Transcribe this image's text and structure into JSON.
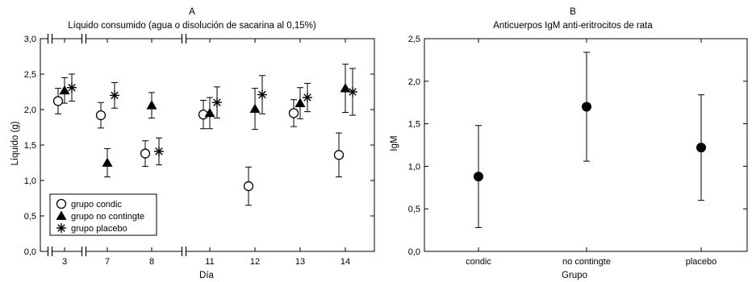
{
  "chart_data": [
    {
      "type": "scatter",
      "panel_letter": "A",
      "title": "Líquido consumido (agua o disolución de sacarina al 0,15%)",
      "xlabel": "Día",
      "ylabel": "Líquido (g)",
      "ylim": [
        0,
        3
      ],
      "yticks": [
        "0,0",
        "0,5",
        "1,0",
        "1,5",
        "2,0",
        "2,5",
        "3,0"
      ],
      "categories": [
        "3",
        "7",
        "8",
        "11",
        "12",
        "13",
        "14"
      ],
      "axis_breaks": "between 3 and 7, and between 8 and 11",
      "grid": false,
      "legend_position": "bottom-left",
      "series": [
        {
          "name": "grupo condic",
          "marker": "open-circle",
          "values": [
            2.12,
            1.92,
            1.38,
            1.93,
            0.92,
            1.95,
            1.36
          ],
          "errors": [
            0.18,
            0.18,
            0.18,
            0.2,
            0.27,
            0.19,
            0.31
          ]
        },
        {
          "name": "grupo no contingte",
          "marker": "filled-triangle",
          "values": [
            2.27,
            1.25,
            2.06,
            1.95,
            2.01,
            2.09,
            2.3
          ],
          "errors": [
            0.18,
            0.2,
            0.18,
            0.22,
            0.29,
            0.22,
            0.34
          ]
        },
        {
          "name": "grupo placebo",
          "marker": "asterisk",
          "values": [
            2.31,
            2.2,
            1.41,
            2.1,
            2.21,
            2.17,
            2.25
          ],
          "errors": [
            0.19,
            0.18,
            0.19,
            0.22,
            0.27,
            0.2,
            0.33
          ]
        }
      ]
    },
    {
      "type": "scatter",
      "panel_letter": "B",
      "title": "Anticuerpos IgM anti-eritrocitos de rata",
      "xlabel": "Grupo",
      "ylabel": "IgM",
      "ylim": [
        0,
        2.5
      ],
      "yticks": [
        "0,0",
        "0,5",
        "1,0",
        "1,5",
        "2,0",
        "2,5"
      ],
      "categories": [
        "condic",
        "no contingte",
        "placebo"
      ],
      "grid": false,
      "series": [
        {
          "marker": "filled-circle",
          "values": [
            0.88,
            1.7,
            1.22
          ],
          "errors": [
            0.6,
            0.64,
            0.62
          ]
        }
      ]
    }
  ]
}
